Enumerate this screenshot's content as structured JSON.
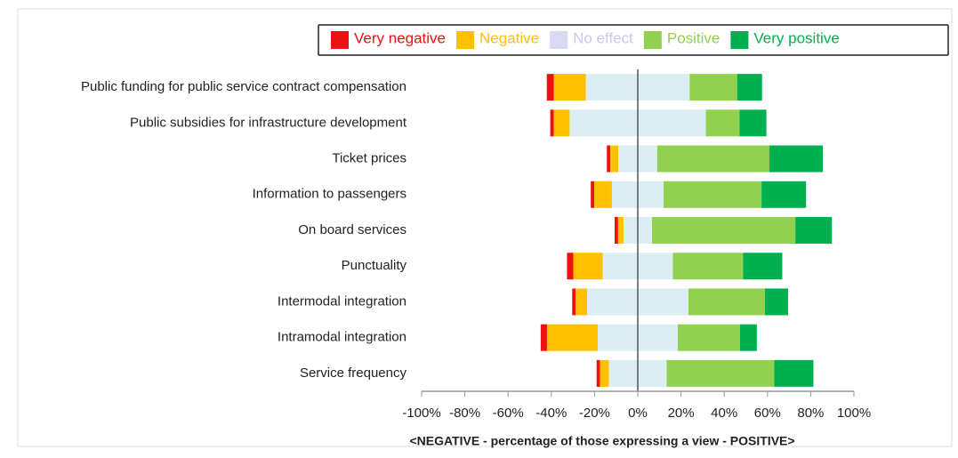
{
  "chart_data": {
    "type": "diverging_bar",
    "categories": [
      "Public funding for public service contract compensation",
      "Public subsidies for infrastructure development",
      "Ticket prices",
      "Information to passengers",
      "On board services",
      "Punctuality",
      "Intermodal integration",
      "Intramodal integration",
      "Service frequency"
    ],
    "series": [
      {
        "name": "Very negative",
        "color": "#ee1111",
        "values": [
          3.3,
          1.6,
          1.6,
          1.6,
          1.6,
          2.9,
          1.6,
          2.9,
          1.6
        ]
      },
      {
        "name": "Negative",
        "color": "#ffc000",
        "values": [
          14.8,
          7.4,
          3.7,
          8.2,
          2.5,
          13.6,
          5.3,
          23.5,
          4.1
        ]
      },
      {
        "name": "No effect",
        "color": "#dbeef4",
        "values": [
          48,
          63,
          18,
          23.9,
          13.2,
          32.5,
          46.9,
          37,
          26.7
        ]
      },
      {
        "name": "Positive",
        "color": "#92d050",
        "values": [
          22,
          15.6,
          51.9,
          45.3,
          66.3,
          32.5,
          35.4,
          28.8,
          49.8
        ]
      },
      {
        "name": "Very positive",
        "color": "#00b050",
        "values": [
          11.5,
          12.4,
          24.7,
          20.6,
          16.9,
          18.1,
          10.7,
          7.8,
          18.1
        ]
      }
    ],
    "xlim": [
      -100,
      100
    ],
    "xticks": [
      {
        "value": -100,
        "label": "-100%"
      },
      {
        "value": -80,
        "label": "-80%"
      },
      {
        "value": -60,
        "label": "-60%"
      },
      {
        "value": -40,
        "label": "-40%"
      },
      {
        "value": -20,
        "label": "-20%"
      },
      {
        "value": 0,
        "label": "0%"
      },
      {
        "value": 20,
        "label": "20%"
      },
      {
        "value": 40,
        "label": "40%"
      },
      {
        "value": 60,
        "label": "60%"
      },
      {
        "value": 80,
        "label": "80%"
      },
      {
        "value": 100,
        "label": "100%"
      }
    ],
    "x_label": "<NEGATIVE  -  percentage of those expressing a view  -  POSITIVE>"
  }
}
